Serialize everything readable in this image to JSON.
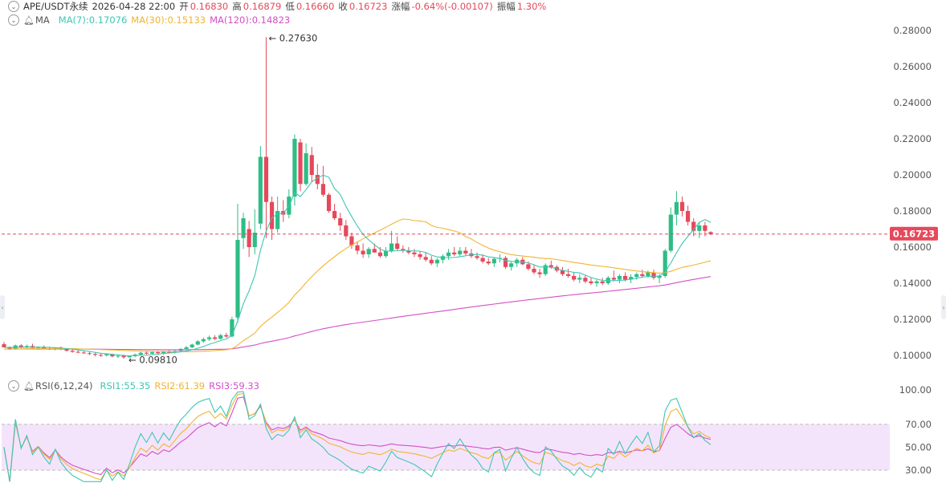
{
  "header": {
    "symbol": "APE/USDT永续",
    "datetime": "2026-04-28 22:00",
    "open_label": "开",
    "open": "0.16830",
    "high_label": "高",
    "high": "0.16879",
    "low_label": "低",
    "low": "0.16660",
    "close_label": "收",
    "close": "0.16723",
    "change_label": "涨幅",
    "change": "-0.64%(-0.00107)",
    "amp_label": "振幅",
    "amp": "1.30%"
  },
  "ma_legend": {
    "name": "MA",
    "ma7": "MA(7):0.17076",
    "ma30": "MA(30):0.15133",
    "ma120": "MA(120):0.14823"
  },
  "rsi_legend": {
    "name": "RSI(6,12,24)",
    "rsi1": "RSI1:55.35",
    "rsi2": "RSI2:61.39",
    "rsi3": "RSI3:59.33"
  },
  "colors": {
    "up": "#2ebd85",
    "down": "#e5495b",
    "ma7": "#3dc7b5",
    "ma30": "#f2b431",
    "ma120": "#d44fc6",
    "rsi_band": "#f4e4fb"
  },
  "chart_data": {
    "type": "candlestick",
    "price_axis": {
      "ticks": [
        "0.28000",
        "0.26000",
        "0.24000",
        "0.22000",
        "0.20000",
        "0.18000",
        "0.16000",
        "0.14000",
        "0.12000",
        "0.10000"
      ],
      "range": [
        0.095,
        0.285
      ]
    },
    "last_price": "0.16723",
    "annotations": {
      "high": "0.27630",
      "low": "0.09810"
    },
    "candles": [
      [
        0.1062,
        0.1075,
        0.105,
        0.1045
      ],
      [
        0.1045,
        0.105,
        0.103,
        0.1038
      ],
      [
        0.1038,
        0.106,
        0.1032,
        0.1055
      ],
      [
        0.1055,
        0.1062,
        0.104,
        0.1045
      ],
      [
        0.1045,
        0.106,
        0.1038,
        0.1052
      ],
      [
        0.1052,
        0.1065,
        0.104,
        0.1042
      ],
      [
        0.1042,
        0.105,
        0.1032,
        0.1046
      ],
      [
        0.1046,
        0.1055,
        0.1035,
        0.104
      ],
      [
        0.104,
        0.1048,
        0.103,
        0.1035
      ],
      [
        0.1035,
        0.1045,
        0.1028,
        0.1042
      ],
      [
        0.1042,
        0.105,
        0.103,
        0.1033
      ],
      [
        0.1033,
        0.104,
        0.1022,
        0.1026
      ],
      [
        0.1026,
        0.1035,
        0.1015,
        0.102
      ],
      [
        0.102,
        0.1028,
        0.1012,
        0.1016
      ],
      [
        0.1016,
        0.1025,
        0.1008,
        0.1012
      ],
      [
        0.1012,
        0.102,
        0.1002,
        0.1008
      ],
      [
        0.1008,
        0.1015,
        0.0995,
        0.1003
      ],
      [
        0.1003,
        0.101,
        0.0992,
        0.1
      ],
      [
        0.1,
        0.1012,
        0.0995,
        0.1006
      ],
      [
        0.1006,
        0.101,
        0.099,
        0.0995
      ],
      [
        0.0995,
        0.1005,
        0.0985,
        0.0998
      ],
      [
        0.0998,
        0.1004,
        0.0981,
        0.099
      ],
      [
        0.099,
        0.1,
        0.0985,
        0.0996
      ],
      [
        0.0996,
        0.101,
        0.099,
        0.1005
      ],
      [
        0.1005,
        0.102,
        0.1,
        0.1015
      ],
      [
        0.1015,
        0.1025,
        0.1005,
        0.101
      ],
      [
        0.101,
        0.1022,
        0.1002,
        0.1018
      ],
      [
        0.1018,
        0.1026,
        0.1008,
        0.1012
      ],
      [
        0.1012,
        0.1025,
        0.1005,
        0.102
      ],
      [
        0.102,
        0.103,
        0.1012,
        0.1016
      ],
      [
        0.1016,
        0.1032,
        0.101,
        0.1025
      ],
      [
        0.1025,
        0.104,
        0.1018,
        0.1036
      ],
      [
        0.1036,
        0.1052,
        0.103,
        0.1045
      ],
      [
        0.1045,
        0.1065,
        0.104,
        0.106
      ],
      [
        0.106,
        0.1085,
        0.1055,
        0.1078
      ],
      [
        0.1078,
        0.1098,
        0.107,
        0.109
      ],
      [
        0.109,
        0.111,
        0.108,
        0.11
      ],
      [
        0.11,
        0.1112,
        0.1085,
        0.1092
      ],
      [
        0.1092,
        0.112,
        0.1088,
        0.1112
      ],
      [
        0.1112,
        0.1125,
        0.1098,
        0.1105
      ],
      [
        0.1105,
        0.1215,
        0.11,
        0.12
      ],
      [
        0.121,
        0.184,
        0.118,
        0.164
      ],
      [
        0.165,
        0.179,
        0.159,
        0.176
      ],
      [
        0.17,
        0.1745,
        0.1545,
        0.16
      ],
      [
        0.16,
        0.181,
        0.156,
        0.168
      ],
      [
        0.173,
        0.216,
        0.17,
        0.21
      ],
      [
        0.21,
        0.2763,
        0.165,
        0.185
      ],
      [
        0.185,
        0.188,
        0.164,
        0.17
      ],
      [
        0.17,
        0.188,
        0.168,
        0.18
      ],
      [
        0.18,
        0.186,
        0.174,
        0.178
      ],
      [
        0.178,
        0.192,
        0.176,
        0.188
      ],
      [
        0.188,
        0.2225,
        0.183,
        0.22
      ],
      [
        0.218,
        0.22,
        0.191,
        0.195
      ],
      [
        0.195,
        0.2175,
        0.194,
        0.212
      ],
      [
        0.211,
        0.2155,
        0.196,
        0.2
      ],
      [
        0.2,
        0.206,
        0.192,
        0.195
      ],
      [
        0.195,
        0.205,
        0.188,
        0.189
      ],
      [
        0.189,
        0.19,
        0.179,
        0.18
      ],
      [
        0.18,
        0.184,
        0.175,
        0.176
      ],
      [
        0.176,
        0.179,
        0.169,
        0.172
      ],
      [
        0.172,
        0.175,
        0.164,
        0.166
      ],
      [
        0.166,
        0.168,
        0.159,
        0.161
      ],
      [
        0.161,
        0.163,
        0.156,
        0.158
      ],
      [
        0.158,
        0.162,
        0.154,
        0.156
      ],
      [
        0.156,
        0.16,
        0.154,
        0.159
      ],
      [
        0.159,
        0.162,
        0.157,
        0.157
      ],
      [
        0.157,
        0.16,
        0.154,
        0.155
      ],
      [
        0.155,
        0.16,
        0.154,
        0.158
      ],
      [
        0.158,
        0.169,
        0.157,
        0.162
      ],
      [
        0.162,
        0.166,
        0.158,
        0.159
      ],
      [
        0.159,
        0.161,
        0.157,
        0.158
      ],
      [
        0.158,
        0.16,
        0.156,
        0.157
      ],
      [
        0.157,
        0.159,
        0.1545,
        0.156
      ],
      [
        0.156,
        0.158,
        0.153,
        0.1545
      ],
      [
        0.1545,
        0.157,
        0.152,
        0.153
      ],
      [
        0.153,
        0.155,
        0.15,
        0.151
      ],
      [
        0.151,
        0.154,
        0.149,
        0.153
      ],
      [
        0.153,
        0.156,
        0.151,
        0.155
      ],
      [
        0.155,
        0.159,
        0.153,
        0.157
      ],
      [
        0.157,
        0.16,
        0.155,
        0.156
      ],
      [
        0.156,
        0.16,
        0.155,
        0.158
      ],
      [
        0.158,
        0.16,
        0.1555,
        0.1565
      ],
      [
        0.1565,
        0.159,
        0.154,
        0.155
      ],
      [
        0.155,
        0.157,
        0.153,
        0.154
      ],
      [
        0.154,
        0.156,
        0.151,
        0.152
      ],
      [
        0.152,
        0.154,
        0.15,
        0.151
      ],
      [
        0.151,
        0.154,
        0.149,
        0.1535
      ],
      [
        0.1535,
        0.156,
        0.1515,
        0.154
      ],
      [
        0.154,
        0.155,
        0.148,
        0.149
      ],
      [
        0.149,
        0.152,
        0.147,
        0.151
      ],
      [
        0.151,
        0.154,
        0.149,
        0.153
      ],
      [
        0.153,
        0.1545,
        0.15,
        0.1505
      ],
      [
        0.1505,
        0.152,
        0.147,
        0.148
      ],
      [
        0.148,
        0.15,
        0.145,
        0.146
      ],
      [
        0.146,
        0.148,
        0.143,
        0.145
      ],
      [
        0.145,
        0.151,
        0.144,
        0.15
      ],
      [
        0.15,
        0.1525,
        0.148,
        0.149
      ],
      [
        0.149,
        0.15,
        0.146,
        0.147
      ],
      [
        0.147,
        0.149,
        0.144,
        0.145
      ],
      [
        0.145,
        0.148,
        0.143,
        0.144
      ],
      [
        0.144,
        0.146,
        0.141,
        0.142
      ],
      [
        0.142,
        0.145,
        0.14,
        0.143
      ],
      [
        0.143,
        0.1445,
        0.14,
        0.141
      ],
      [
        0.141,
        0.143,
        0.139,
        0.14
      ],
      [
        0.14,
        0.142,
        0.138,
        0.141
      ],
      [
        0.141,
        0.143,
        0.139,
        0.14
      ],
      [
        0.14,
        0.144,
        0.139,
        0.143
      ],
      [
        0.143,
        0.147,
        0.141,
        0.142
      ],
      [
        0.142,
        0.145,
        0.14,
        0.144
      ],
      [
        0.144,
        0.146,
        0.141,
        0.142
      ],
      [
        0.142,
        0.145,
        0.14,
        0.1435
      ],
      [
        0.1435,
        0.146,
        0.142,
        0.145
      ],
      [
        0.145,
        0.1475,
        0.143,
        0.144
      ],
      [
        0.144,
        0.147,
        0.143,
        0.146
      ],
      [
        0.146,
        0.1475,
        0.142,
        0.143
      ],
      [
        0.143,
        0.145,
        0.14,
        0.144
      ],
      [
        0.144,
        0.159,
        0.143,
        0.158
      ],
      [
        0.158,
        0.182,
        0.157,
        0.178
      ],
      [
        0.178,
        0.191,
        0.172,
        0.185
      ],
      [
        0.185,
        0.188,
        0.177,
        0.18
      ],
      [
        0.18,
        0.183,
        0.172,
        0.174
      ],
      [
        0.174,
        0.176,
        0.166,
        0.169
      ],
      [
        0.169,
        0.174,
        0.165,
        0.172
      ],
      [
        0.172,
        0.174,
        0.166,
        0.169
      ],
      [
        0.1683,
        0.1688,
        0.1666,
        0.1672
      ]
    ],
    "ma7_end": 0.17076,
    "ma30_end": 0.15133,
    "ma120_end": 0.14823,
    "rsi": {
      "axis_ticks": [
        "100.00",
        "70.00",
        "50.00",
        "30.00"
      ],
      "band": [
        30,
        70
      ],
      "rsi1_end": 55.35,
      "rsi2_end": 61.39,
      "rsi3_end": 59.33
    }
  }
}
